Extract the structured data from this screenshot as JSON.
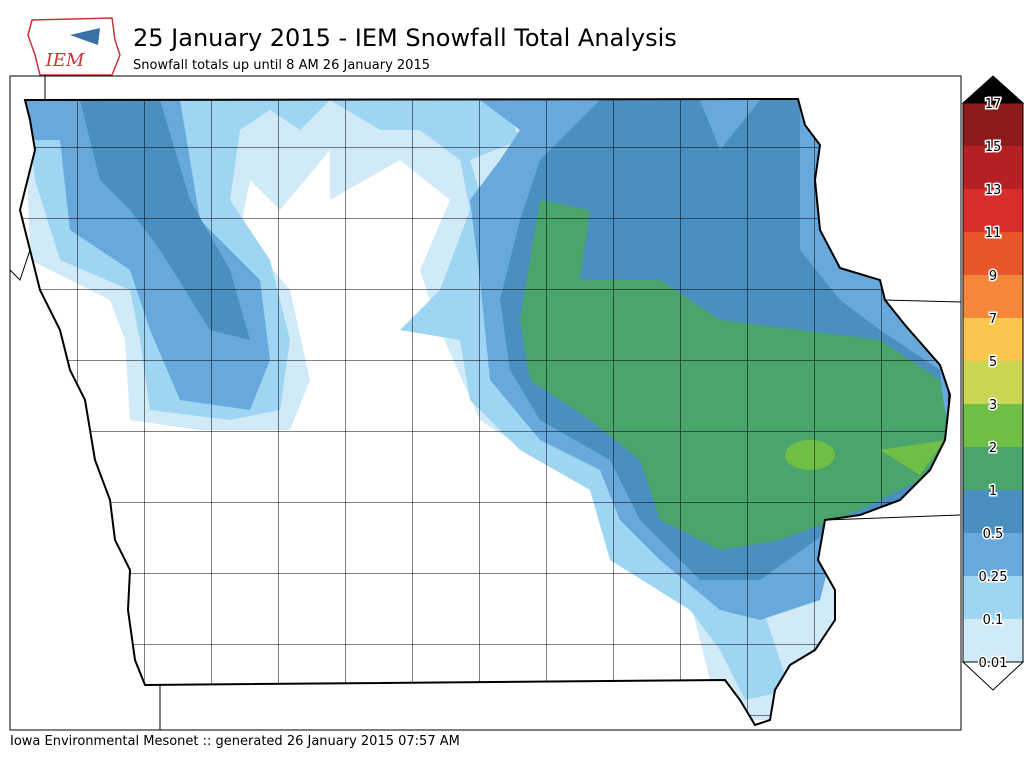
{
  "header": {
    "logo": "IEM",
    "title": "25 January 2015 - IEM Snowfall Total Analysis",
    "subtitle": "Snowfall totals up until 8 AM 26 January 2015"
  },
  "legend": {
    "levels": [
      0.01,
      0.1,
      0.25,
      0.5,
      1,
      2,
      3,
      5,
      7,
      9,
      11,
      13,
      15,
      17
    ],
    "colors": [
      "#d0eaf8",
      "#9ed5f3",
      "#67a9dc",
      "#4a8fc0",
      "#49a56c",
      "#6fbe45",
      "#c8d653",
      "#fbc64d",
      "#f5873a",
      "#e8572b",
      "#d92d2d",
      "#b52025",
      "#8e1b1b"
    ],
    "under_color": "#ffffff",
    "over_color": "#000000"
  },
  "footer": "Iowa Environmental Mesonet :: generated 26 January 2015 07:57 AM"
}
